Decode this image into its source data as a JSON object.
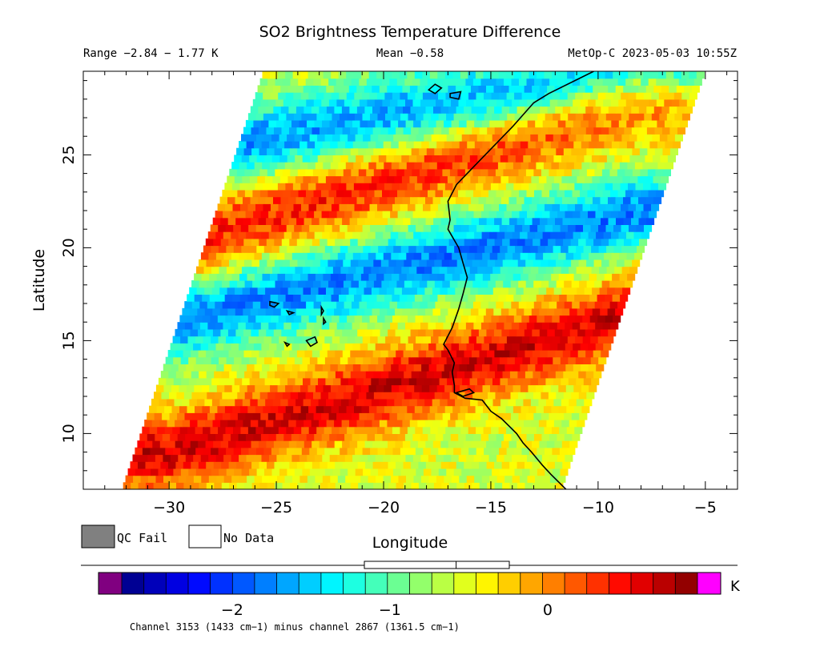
{
  "title": "SO2 Brightness Temperature Difference",
  "header": {
    "range": "Range −2.84 − 1.77 K",
    "mean": "Mean −0.58",
    "satellite": "MetOp-C 2023-05-03 10:55Z"
  },
  "legend": {
    "qc_fail_label": "QC Fail",
    "no_data_label": "No Data",
    "qc_fail_color": "#808080",
    "no_data_color": "#ffffff"
  },
  "colorbar": {
    "unit": "K",
    "ticks": [
      "−2",
      "−1",
      "0"
    ],
    "tick_values": [
      -2,
      -1,
      0
    ],
    "min": -2.7,
    "max": 0.95,
    "under_color": "#800080",
    "over_color": "#ff00ff",
    "stops": [
      "#00007f",
      "#0000ff",
      "#007fff",
      "#00ffff",
      "#7fff7f",
      "#ffff00",
      "#ff7f00",
      "#ff0000",
      "#7f0000"
    ],
    "footnote": "Channel 3153 (1433 cm−1) minus channel 2867 (1361.5 cm−1)",
    "mean_marker": -0.58,
    "range_marker": [
      -2.84,
      1.77
    ]
  },
  "chart_data": {
    "type": "heatmap",
    "title": "SO2 Brightness Temperature Difference",
    "xlabel": "Longitude",
    "ylabel": "Latitude",
    "xlim": [
      -34,
      -3.5
    ],
    "ylim": [
      7,
      29.5
    ],
    "x_ticks": [
      -30,
      -25,
      -20,
      -15,
      -10,
      -5
    ],
    "x_tick_labels": [
      "−30",
      "−25",
      "−20",
      "−15",
      "−10",
      "−5"
    ],
    "y_ticks": [
      10,
      15,
      20,
      25
    ],
    "y_tick_labels": [
      "10",
      "15",
      "20",
      "25"
    ],
    "units": "K",
    "swath": {
      "bottom_left": [
        -32.2,
        7
      ],
      "bottom_right": [
        -11.7,
        7
      ],
      "top_left": [
        -25.6,
        29.5
      ],
      "top_right": [
        -5.0,
        29.5
      ]
    },
    "features": [
      {
        "name": "positive band north",
        "axis_lat_at_west": 20,
        "axis_lat_at_east": 28,
        "value": 0.5
      },
      {
        "name": "negative band north",
        "axis_lat_at_west": 25,
        "axis_lat_at_east": 29.5,
        "value": -1.8
      },
      {
        "name": "negative band central",
        "axis_lat_at_west": 16,
        "axis_lat_at_east": 22,
        "value": -1.9
      },
      {
        "name": "positive band south",
        "axis_lat_at_west": 9,
        "axis_lat_at_east": 16.5,
        "value": 0.75
      }
    ],
    "coastline": [
      [
        -10.2,
        29.5
      ],
      [
        -12.3,
        28.3
      ],
      [
        -13.0,
        27.8
      ],
      [
        -14.0,
        26.5
      ],
      [
        -15.6,
        24.6
      ],
      [
        -16.6,
        23.4
      ],
      [
        -17.0,
        22.5
      ],
      [
        -16.9,
        21.5
      ],
      [
        -17.0,
        21.0
      ],
      [
        -16.5,
        20.0
      ],
      [
        -16.3,
        19.2
      ],
      [
        -16.1,
        18.4
      ],
      [
        -16.3,
        17.5
      ],
      [
        -16.5,
        16.7
      ],
      [
        -16.8,
        15.7
      ],
      [
        -17.2,
        14.8
      ],
      [
        -17.0,
        14.5
      ],
      [
        -16.7,
        13.8
      ],
      [
        -16.8,
        13.3
      ],
      [
        -16.7,
        12.6
      ],
      [
        -16.7,
        12.2
      ],
      [
        -16.2,
        11.9
      ],
      [
        -15.4,
        11.8
      ],
      [
        -15.0,
        11.2
      ],
      [
        -14.5,
        10.8
      ],
      [
        -13.8,
        10.0
      ],
      [
        -13.5,
        9.5
      ],
      [
        -13.1,
        9.0
      ],
      [
        -12.6,
        8.3
      ],
      [
        -12.2,
        7.8
      ],
      [
        -11.5,
        7.0
      ]
    ],
    "islands": [
      [
        [
          -17.9,
          28.5
        ],
        [
          -17.6,
          28.8
        ],
        [
          -17.3,
          28.6
        ],
        [
          -17.6,
          28.3
        ]
      ],
      [
        [
          -16.9,
          28.3
        ],
        [
          -16.4,
          28.4
        ],
        [
          -16.5,
          28.0
        ],
        [
          -16.9,
          28.1
        ]
      ],
      [
        [
          -24.5,
          16.6
        ],
        [
          -24.2,
          16.5
        ],
        [
          -24.4,
          16.4
        ]
      ],
      [
        [
          -22.9,
          16.8
        ],
        [
          -22.8,
          16.6
        ],
        [
          -22.9,
          16.4
        ]
      ],
      [
        [
          -22.8,
          16.2
        ],
        [
          -22.7,
          16.0
        ],
        [
          -22.8,
          15.9
        ]
      ],
      [
        [
          -25.3,
          17.1
        ],
        [
          -24.9,
          17.0
        ],
        [
          -25.1,
          16.8
        ],
        [
          -25.3,
          16.9
        ]
      ],
      [
        [
          -23.6,
          15.0
        ],
        [
          -23.2,
          15.2
        ],
        [
          -23.1,
          14.9
        ],
        [
          -23.4,
          14.7
        ]
      ],
      [
        [
          -24.6,
          14.9
        ],
        [
          -24.4,
          14.8
        ],
        [
          -24.5,
          14.7
        ]
      ],
      [
        [
          -16.6,
          12.2
        ],
        [
          -16.0,
          12.4
        ],
        [
          -15.8,
          12.2
        ],
        [
          -16.3,
          12.0
        ]
      ]
    ]
  }
}
